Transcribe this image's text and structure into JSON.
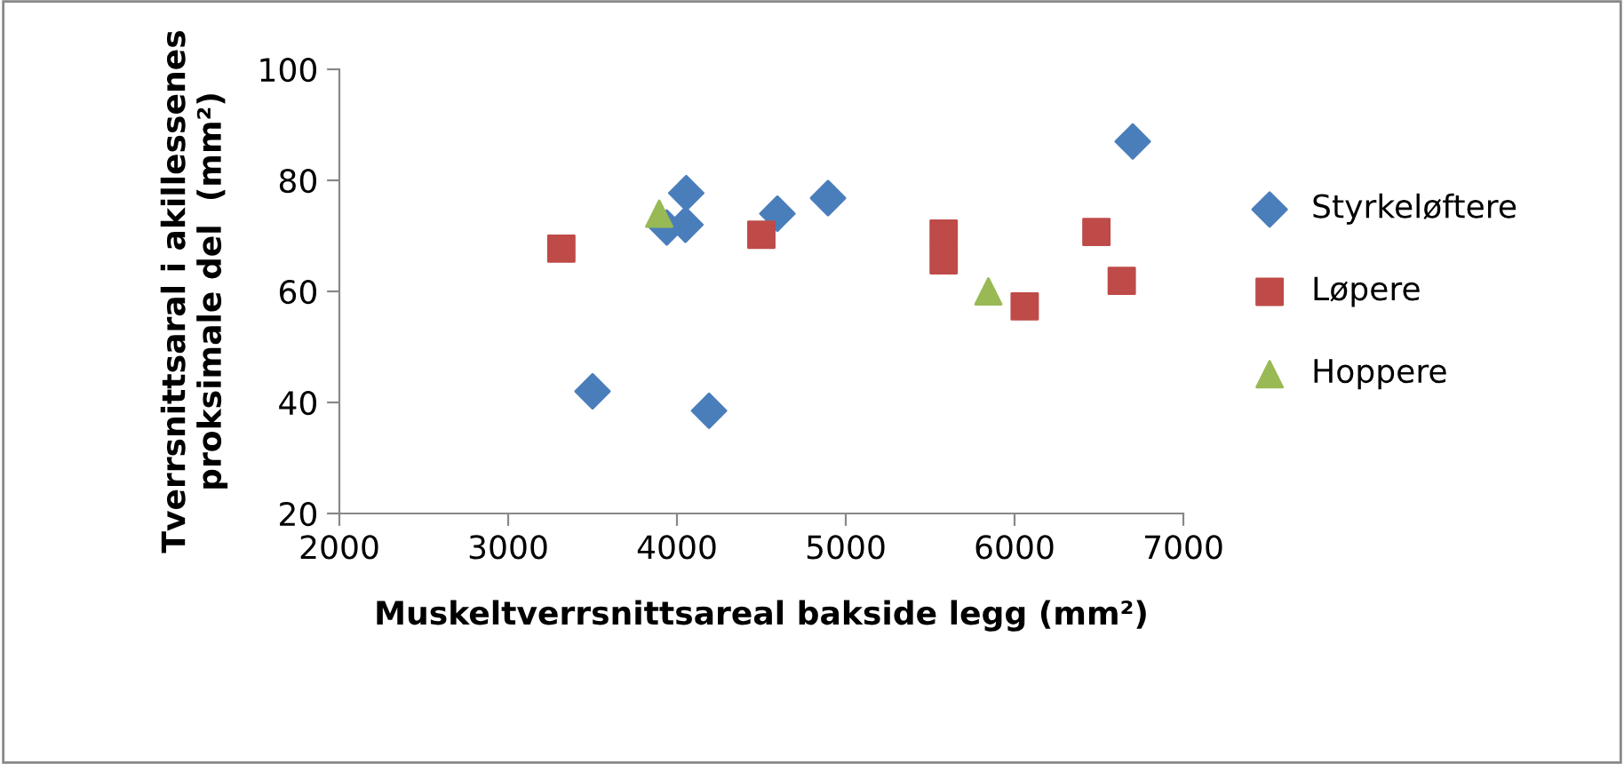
{
  "chart_data": {
    "type": "scatter",
    "xlabel": "Muskeltverrsnittsareal bakside legg (mm²)",
    "ylabel": "Tverrsnittsaral i akillessenes proksimale del  (mm²)",
    "xlim": [
      2000,
      7000
    ],
    "xticks": [
      2000,
      3000,
      4000,
      5000,
      6000,
      7000
    ],
    "ylim": [
      20,
      100
    ],
    "yticks": [
      20,
      40,
      60,
      80,
      100
    ],
    "grid": false,
    "legend": "right",
    "series": [
      {
        "name": "Styrkeløftere",
        "color": "#4a7ebb",
        "marker": "diamond",
        "x": [
          3500,
          4190,
          3940,
          4050,
          4055,
          4595,
          4895,
          6700
        ],
        "values": [
          42,
          38.5,
          71.5,
          72,
          77.7,
          74,
          76.8,
          87
        ]
      },
      {
        "name": "Løpere",
        "color": "#be4b48",
        "marker": "square",
        "x": [
          3315,
          4500,
          5580,
          5580,
          6060,
          6485,
          6635
        ],
        "values": [
          67.7,
          70.2,
          70.4,
          65.6,
          57.3,
          70.7,
          61.9
        ]
      },
      {
        "name": "Hoppere",
        "color": "#98b954",
        "marker": "triangle",
        "x": [
          3895,
          5845
        ],
        "values": [
          74,
          60
        ]
      }
    ]
  }
}
